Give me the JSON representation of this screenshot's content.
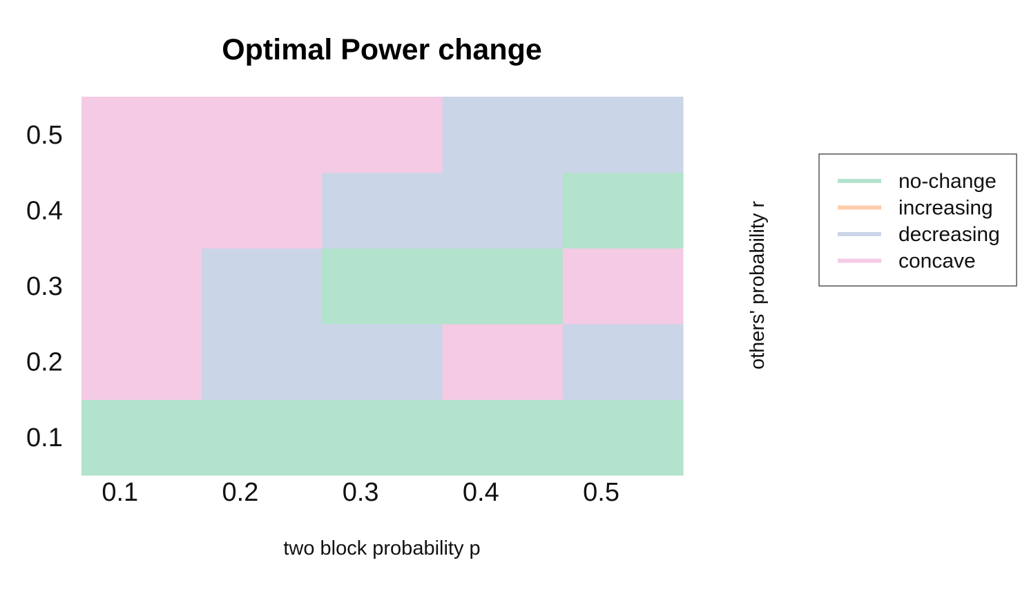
{
  "chart_data": {
    "type": "heatmap",
    "title": "Optimal Power change",
    "xlabel": "two block probability p",
    "ylabel": "others' probability r",
    "x": [
      0.1,
      0.2,
      0.3,
      0.4,
      0.5
    ],
    "y": [
      0.1,
      0.2,
      0.3,
      0.4,
      0.5
    ],
    "x_tick_labels": [
      "0.1",
      "0.2",
      "0.3",
      "0.4",
      "0.5"
    ],
    "y_tick_labels": [
      "0.1",
      "0.2",
      "0.3",
      "0.4",
      "0.5"
    ],
    "categories": [
      "no-change",
      "increasing",
      "decreasing",
      "concave"
    ],
    "colors": {
      "no-change": "#b3e2cd",
      "increasing": "#fdcdac",
      "decreasing": "#cbd5e8",
      "concave": "#f4cae4"
    },
    "cells": [
      {
        "p": 0.1,
        "r": 0.1,
        "category": "no-change"
      },
      {
        "p": 0.2,
        "r": 0.1,
        "category": "no-change"
      },
      {
        "p": 0.3,
        "r": 0.1,
        "category": "no-change"
      },
      {
        "p": 0.4,
        "r": 0.1,
        "category": "no-change"
      },
      {
        "p": 0.5,
        "r": 0.1,
        "category": "no-change"
      },
      {
        "p": 0.1,
        "r": 0.2,
        "category": "concave"
      },
      {
        "p": 0.2,
        "r": 0.2,
        "category": "decreasing"
      },
      {
        "p": 0.3,
        "r": 0.2,
        "category": "decreasing"
      },
      {
        "p": 0.4,
        "r": 0.2,
        "category": "concave"
      },
      {
        "p": 0.5,
        "r": 0.2,
        "category": "decreasing"
      },
      {
        "p": 0.1,
        "r": 0.3,
        "category": "concave"
      },
      {
        "p": 0.2,
        "r": 0.3,
        "category": "decreasing"
      },
      {
        "p": 0.3,
        "r": 0.3,
        "category": "no-change"
      },
      {
        "p": 0.4,
        "r": 0.3,
        "category": "no-change"
      },
      {
        "p": 0.5,
        "r": 0.3,
        "category": "concave"
      },
      {
        "p": 0.1,
        "r": 0.4,
        "category": "concave"
      },
      {
        "p": 0.2,
        "r": 0.4,
        "category": "concave"
      },
      {
        "p": 0.3,
        "r": 0.4,
        "category": "decreasing"
      },
      {
        "p": 0.4,
        "r": 0.4,
        "category": "decreasing"
      },
      {
        "p": 0.5,
        "r": 0.4,
        "category": "no-change"
      },
      {
        "p": 0.1,
        "r": 0.5,
        "category": "concave"
      },
      {
        "p": 0.2,
        "r": 0.5,
        "category": "concave"
      },
      {
        "p": 0.3,
        "r": 0.5,
        "category": "concave"
      },
      {
        "p": 0.4,
        "r": 0.5,
        "category": "decreasing"
      },
      {
        "p": 0.5,
        "r": 0.5,
        "category": "decreasing"
      }
    ],
    "legend": {
      "position": "right",
      "entries": [
        "no-change",
        "increasing",
        "decreasing",
        "concave"
      ]
    },
    "grid": false
  }
}
